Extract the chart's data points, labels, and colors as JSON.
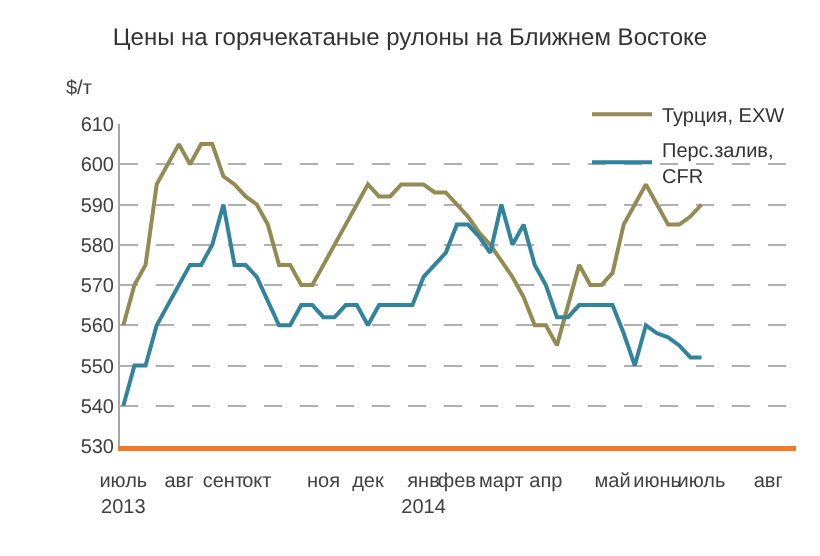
{
  "chart_data": {
    "type": "line",
    "title": "Цены на горячекатаные рулоны на Ближнем Востоке",
    "ylabel": "$/т",
    "categories": [
      "июль\n2013",
      null,
      null,
      null,
      null,
      "авг",
      null,
      null,
      null,
      "сент",
      null,
      null,
      "окт",
      null,
      null,
      null,
      null,
      null,
      "ноя",
      null,
      null,
      null,
      "дек",
      null,
      null,
      null,
      null,
      "янв\n2014",
      null,
      null,
      "фев",
      null,
      null,
      null,
      "март",
      null,
      null,
      null,
      "апр",
      null,
      null,
      null,
      null,
      null,
      "май",
      null,
      null,
      null,
      "июнь",
      null,
      null,
      null,
      "июль",
      null,
      null,
      null,
      null,
      null,
      "авг",
      null,
      null
    ],
    "series": [
      {
        "name": "Турция, EXW",
        "color": "#948a54",
        "values": [
          560,
          570,
          575,
          595,
          600,
          605,
          600,
          605,
          605,
          597,
          595,
          592,
          590,
          585,
          575,
          575,
          570,
          570,
          575,
          580,
          585,
          590,
          595,
          592,
          592,
          595,
          595,
          595,
          593,
          593,
          590,
          587,
          583,
          580,
          576,
          572,
          567,
          560,
          560,
          555,
          565,
          575,
          570,
          570,
          573,
          585,
          590,
          595,
          590,
          585,
          585,
          587,
          590,
          null,
          null,
          null,
          null,
          null,
          null,
          null,
          null
        ]
      },
      {
        "name": "Перс.залив,\nCFR",
        "color": "#31849b",
        "values": [
          540,
          550,
          550,
          560,
          565,
          570,
          575,
          575,
          580,
          590,
          575,
          575,
          572,
          566,
          560,
          560,
          565,
          565,
          562,
          562,
          565,
          565,
          560,
          565,
          565,
          565,
          565,
          572,
          575,
          578,
          585,
          585,
          582,
          578,
          590,
          580,
          585,
          575,
          570,
          562,
          562,
          565,
          565,
          565,
          565,
          558,
          550,
          560,
          558,
          557,
          555,
          552,
          552,
          null,
          null,
          null,
          null,
          null,
          null,
          null,
          null
        ]
      }
    ],
    "ylim": [
      530,
      610
    ],
    "yticks": [
      530,
      540,
      550,
      560,
      570,
      580,
      590,
      600,
      610
    ],
    "grid": "y",
    "legend": "top right",
    "line_style": "solid",
    "marker": "none"
  }
}
